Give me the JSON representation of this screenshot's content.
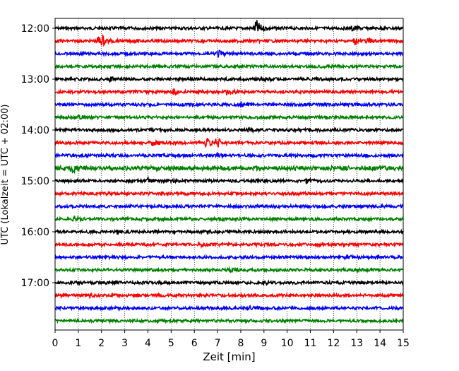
{
  "chart_data": {
    "type": "line",
    "title": "",
    "xlabel": "Zeit  [min]",
    "ylabel": "UTC (Lokalzeit = UTC + 02:00)",
    "xlim": [
      0,
      15
    ],
    "x_ticks": [
      0,
      1,
      2,
      3,
      4,
      5,
      6,
      7,
      8,
      9,
      10,
      11,
      12,
      13,
      14,
      15
    ],
    "x_tick_labels": [
      "0",
      "1",
      "2",
      "3",
      "4",
      "5",
      "6",
      "7",
      "8",
      "9",
      "10",
      "11",
      "12",
      "13",
      "14",
      "15"
    ],
    "y_tick_labels": [
      "12:00",
      "13:00",
      "14:00",
      "15:00",
      "16:00",
      "17:00"
    ],
    "grid": "vertical dotted lines at each minute",
    "trace_interval_minutes": 15,
    "color_cycle": [
      "#000000",
      "#ff0000",
      "#0000ff",
      "#008000"
    ],
    "traces": [
      {
        "start": "12:00",
        "color": "#000000",
        "amplitude": 2,
        "events": [
          {
            "t": 8.65,
            "amp": 13
          },
          {
            "t": 12.8,
            "amp": 4
          }
        ]
      },
      {
        "start": "12:15",
        "color": "#ff0000",
        "amplitude": 2,
        "events": [
          {
            "t": 1.85,
            "amp": 7
          },
          {
            "t": 2.05,
            "amp": 5
          },
          {
            "t": 12.9,
            "amp": 5
          },
          {
            "t": 13.5,
            "amp": 4
          }
        ]
      },
      {
        "start": "12:30",
        "color": "#0000ff",
        "amplitude": 2,
        "events": [
          {
            "t": 7.0,
            "amp": 5
          }
        ]
      },
      {
        "start": "12:45",
        "color": "#008000",
        "amplitude": 2,
        "events": []
      },
      {
        "start": "13:00",
        "color": "#000000",
        "amplitude": 2,
        "events": [
          {
            "t": 2.3,
            "amp": 4
          },
          {
            "t": 8.9,
            "amp": 3
          }
        ]
      },
      {
        "start": "13:15",
        "color": "#ff0000",
        "amplitude": 2,
        "events": [
          {
            "t": 5.1,
            "amp": 4
          },
          {
            "t": 7.4,
            "amp": 4
          }
        ]
      },
      {
        "start": "13:30",
        "color": "#0000ff",
        "amplitude": 2,
        "events": [
          {
            "t": 8.0,
            "amp": 3
          }
        ]
      },
      {
        "start": "13:45",
        "color": "#008000",
        "amplitude": 2,
        "events": [
          {
            "t": 1.0,
            "amp": 3
          }
        ]
      },
      {
        "start": "14:00",
        "color": "#000000",
        "amplitude": 2,
        "events": [
          {
            "t": 8.3,
            "amp": 3
          }
        ]
      },
      {
        "start": "14:15",
        "color": "#ff0000",
        "amplitude": 2,
        "events": [
          {
            "t": 6.5,
            "amp": 8
          },
          {
            "t": 6.95,
            "amp": 9
          },
          {
            "t": 4.2,
            "amp": 3
          }
        ]
      },
      {
        "start": "14:30",
        "color": "#0000ff",
        "amplitude": 2,
        "events": [
          {
            "t": 7.0,
            "amp": 3
          }
        ]
      },
      {
        "start": "14:45",
        "color": "#008000",
        "amplitude": 3,
        "events": [
          {
            "t": 0.7,
            "amp": 6
          }
        ]
      },
      {
        "start": "15:00",
        "color": "#000000",
        "amplitude": 2,
        "events": [
          {
            "t": 4.0,
            "amp": 3
          },
          {
            "t": 10.8,
            "amp": 3
          }
        ]
      },
      {
        "start": "15:15",
        "color": "#ff0000",
        "amplitude": 2,
        "events": []
      },
      {
        "start": "15:30",
        "color": "#0000ff",
        "amplitude": 2,
        "events": []
      },
      {
        "start": "15:45",
        "color": "#008000",
        "amplitude": 2,
        "events": [
          {
            "t": 0.8,
            "amp": 4
          }
        ]
      },
      {
        "start": "16:00",
        "color": "#000000",
        "amplitude": 2,
        "events": [
          {
            "t": 2.6,
            "amp": 3
          }
        ]
      },
      {
        "start": "16:15",
        "color": "#ff0000",
        "amplitude": 2,
        "events": [
          {
            "t": 6.2,
            "amp": 3
          }
        ]
      },
      {
        "start": "16:30",
        "color": "#0000ff",
        "amplitude": 2,
        "events": [
          {
            "t": 12.5,
            "amp": 3
          }
        ]
      },
      {
        "start": "16:45",
        "color": "#008000",
        "amplitude": 2,
        "events": [
          {
            "t": 7.5,
            "amp": 3
          }
        ]
      },
      {
        "start": "17:00",
        "color": "#000000",
        "amplitude": 2,
        "events": [
          {
            "t": 9.0,
            "amp": 3
          }
        ]
      },
      {
        "start": "17:15",
        "color": "#ff0000",
        "amplitude": 2,
        "events": [
          {
            "t": 1.5,
            "amp": 3
          }
        ]
      },
      {
        "start": "17:30",
        "color": "#0000ff",
        "amplitude": 2,
        "events": [
          {
            "t": 8.3,
            "amp": 3
          }
        ]
      },
      {
        "start": "17:45",
        "color": "#008000",
        "amplitude": 2,
        "events": []
      }
    ]
  }
}
